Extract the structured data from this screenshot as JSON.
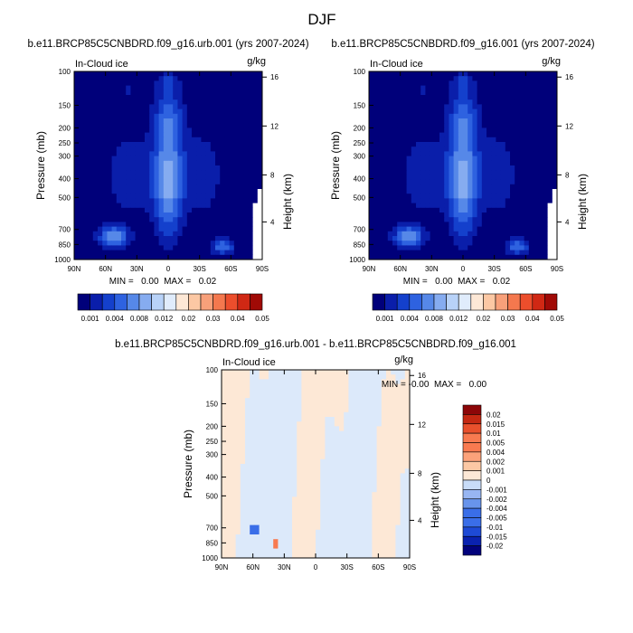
{
  "figure": {
    "title": "DJF"
  },
  "palettes": {
    "sequential": [
      "#00007a",
      "#0a1eaa",
      "#1440cc",
      "#2e62e0",
      "#5688e8",
      "#86acf0",
      "#b8d2f8",
      "#e0ecfc",
      "#fde8d6",
      "#fcc8a4",
      "#f8a07a",
      "#f4784e",
      "#ec4e2c",
      "#d02814",
      "#a00a06",
      "#6e0000"
    ],
    "diverging": [
      "#02027c",
      "#0a22b0",
      "#1e4ad6",
      "#3a6ee8",
      "#6894ec",
      "#98b6f2",
      "#c8dcf8",
      "#fde8d6",
      "#fcc8a4",
      "#fca27a",
      "#f87a50",
      "#e8502c",
      "#c42812",
      "#8c0608"
    ]
  },
  "chart_data": [
    {
      "type": "heatmap",
      "title": "b.e11.BRCP85C5CNBDRD.f09_g16.urb.001 (yrs 2007-2024)",
      "subtitle_left": "In-Cloud ice",
      "units": "g/kg",
      "xlabel": "",
      "ylabel": "Pressure (mb)",
      "ylabel_right": "Height (km)",
      "x_ticks": [
        "90N",
        "60N",
        "30N",
        "0",
        "30S",
        "60S",
        "90S"
      ],
      "y_ticks": [
        "100",
        "150",
        "200",
        "250",
        "300",
        "400",
        "500",
        "700",
        "850",
        "1000"
      ],
      "y_right_ticks": [
        "16",
        "12",
        "8",
        "4"
      ],
      "min_max_text": "MIN =   0.00  MAX =   0.02",
      "levels": [
        "0.001",
        "0.004",
        "0.008",
        "0.012",
        "0.02",
        "0.03",
        "0.04",
        "0.05"
      ],
      "features": [
        {
          "lat": 5,
          "pressure": 500,
          "max_value": 0.02
        },
        {
          "lat": 58,
          "pressure": 840,
          "max_value": 0.02
        },
        {
          "lat": -55,
          "pressure": 870,
          "max_value": 0.012
        }
      ]
    },
    {
      "type": "heatmap",
      "title": "b.e11.BRCP85C5CNBDRD.f09_g16.001 (yrs 2007-2024)",
      "subtitle_left": "In-Cloud ice",
      "units": "g/kg",
      "xlabel": "",
      "ylabel": "Pressure (mb)",
      "ylabel_right": "Height (km)",
      "x_ticks": [
        "90N",
        "60N",
        "30N",
        "0",
        "30S",
        "60S",
        "90S"
      ],
      "y_ticks": [
        "100",
        "150",
        "200",
        "250",
        "300",
        "400",
        "500",
        "700",
        "850",
        "1000"
      ],
      "y_right_ticks": [
        "16",
        "12",
        "8",
        "4"
      ],
      "min_max_text": "MIN =   0.00  MAX =   0.02",
      "levels": [
        "0.001",
        "0.004",
        "0.008",
        "0.012",
        "0.02",
        "0.03",
        "0.04",
        "0.05"
      ],
      "features": [
        {
          "lat": 5,
          "pressure": 500,
          "max_value": 0.02
        },
        {
          "lat": 58,
          "pressure": 840,
          "max_value": 0.02
        },
        {
          "lat": -55,
          "pressure": 870,
          "max_value": 0.012
        }
      ]
    },
    {
      "type": "heatmap",
      "title": "b.e11.BRCP85C5CNBDRD.f09_g16.urb.001 - b.e11.BRCP85C5CNBDRD.f09_g16.001",
      "subtitle_left": "In-Cloud ice",
      "units": "g/kg",
      "xlabel": "",
      "ylabel": "Pressure (mb)",
      "ylabel_right": "Height (km)",
      "x_ticks": [
        "90N",
        "60N",
        "30N",
        "0",
        "30S",
        "60S",
        "90S"
      ],
      "y_ticks": [
        "100",
        "150",
        "200",
        "250",
        "300",
        "400",
        "500",
        "700",
        "850",
        "1000"
      ],
      "y_right_ticks": [
        "16",
        "12",
        "8",
        "4"
      ],
      "min_max_text": "MIN = -0.00  MAX =   0.00",
      "levels": [
        "0.02",
        "0.015",
        "0.01",
        "0.005",
        "0.004",
        "0.002",
        "0.001",
        "0",
        "-0.001",
        "-0.002",
        "-0.004",
        "-0.005",
        "-0.01",
        "-0.015",
        "-0.02"
      ]
    }
  ]
}
